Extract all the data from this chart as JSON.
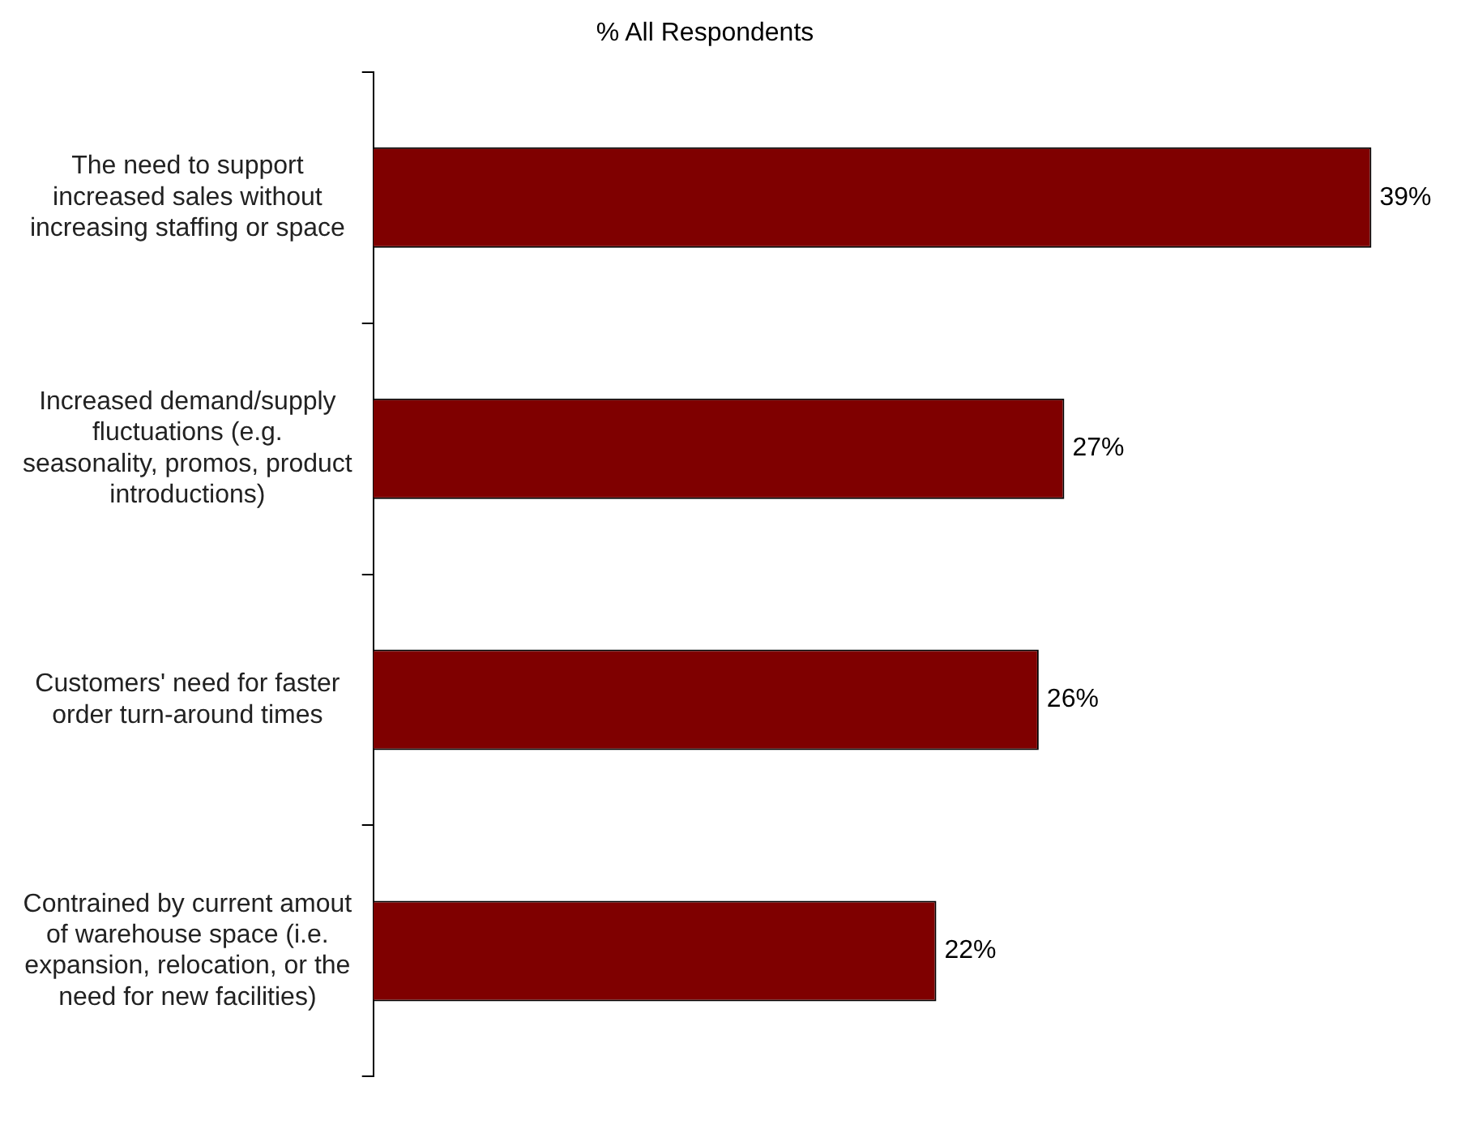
{
  "chart_data": {
    "type": "bar",
    "orientation": "horizontal",
    "title": "% All Respondents",
    "categories": [
      "The need to support increased sales without increasing staffing or space",
      "Increased demand/supply fluctuations (e.g. seasonality, promos, product introductions)",
      "Customers' need for faster order turn-around times",
      "Contrained by current amout of warehouse space (i.e. expansion, relocation, or the need for new facilities)"
    ],
    "values": [
      39,
      27,
      26,
      22
    ],
    "value_labels": [
      "39%",
      "27%",
      "26%",
      "22%"
    ],
    "color": "#7f0000",
    "tick_labels": "y",
    "legend": false
  }
}
